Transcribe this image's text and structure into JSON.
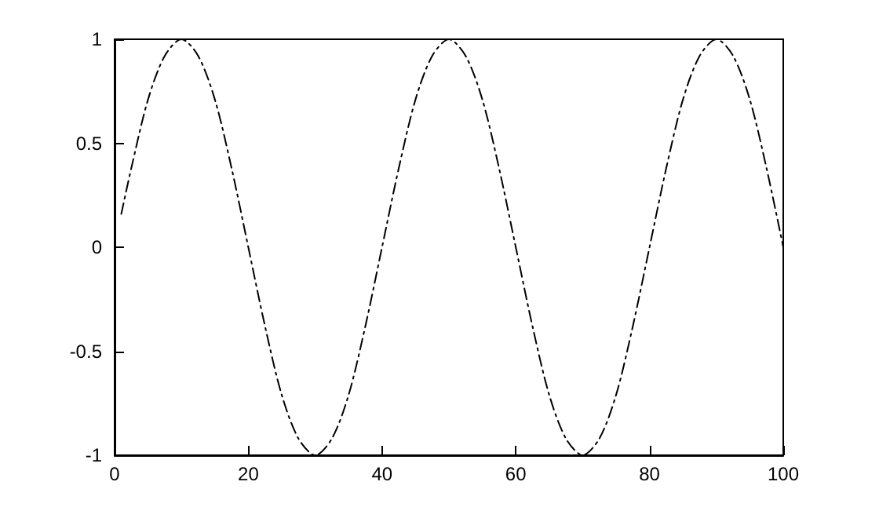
{
  "chart_data": {
    "type": "line",
    "line_style": "dashed",
    "marker": "none",
    "grid": false,
    "x": [
      1,
      2.5,
      5,
      7.5,
      10,
      12.5,
      15,
      17.5,
      20,
      22.5,
      25,
      27.5,
      30,
      32.5,
      35,
      37.5,
      40,
      42.5,
      45,
      47.5,
      50,
      52.5,
      55,
      57.5,
      60,
      62.5,
      65,
      67.5,
      70,
      72.5,
      75,
      77.5,
      80,
      82.5,
      85,
      87.5,
      90,
      92.5,
      95,
      97.5,
      100
    ],
    "series": [
      {
        "color": "#000000",
        "values": [
          0.16,
          0.38,
          0.71,
          0.92,
          1,
          0.92,
          0.71,
          0.38,
          0,
          -0.38,
          -0.71,
          -0.92,
          -1,
          -0.92,
          -0.71,
          -0.38,
          0,
          0.38,
          0.71,
          0.92,
          1,
          0.92,
          0.71,
          0.38,
          0,
          -0.38,
          -0.71,
          -0.92,
          -1,
          -0.92,
          -0.71,
          -0.38,
          0,
          0.38,
          0.71,
          0.92,
          1,
          0.92,
          0.71,
          0.38,
          0
        ]
      }
    ],
    "xlim": [
      0,
      100
    ],
    "xticks": [
      0,
      20,
      40,
      60,
      80,
      100
    ],
    "ylim": [
      -1,
      1
    ],
    "yticks": [
      -1,
      -0.5,
      0,
      0.5,
      1
    ]
  }
}
